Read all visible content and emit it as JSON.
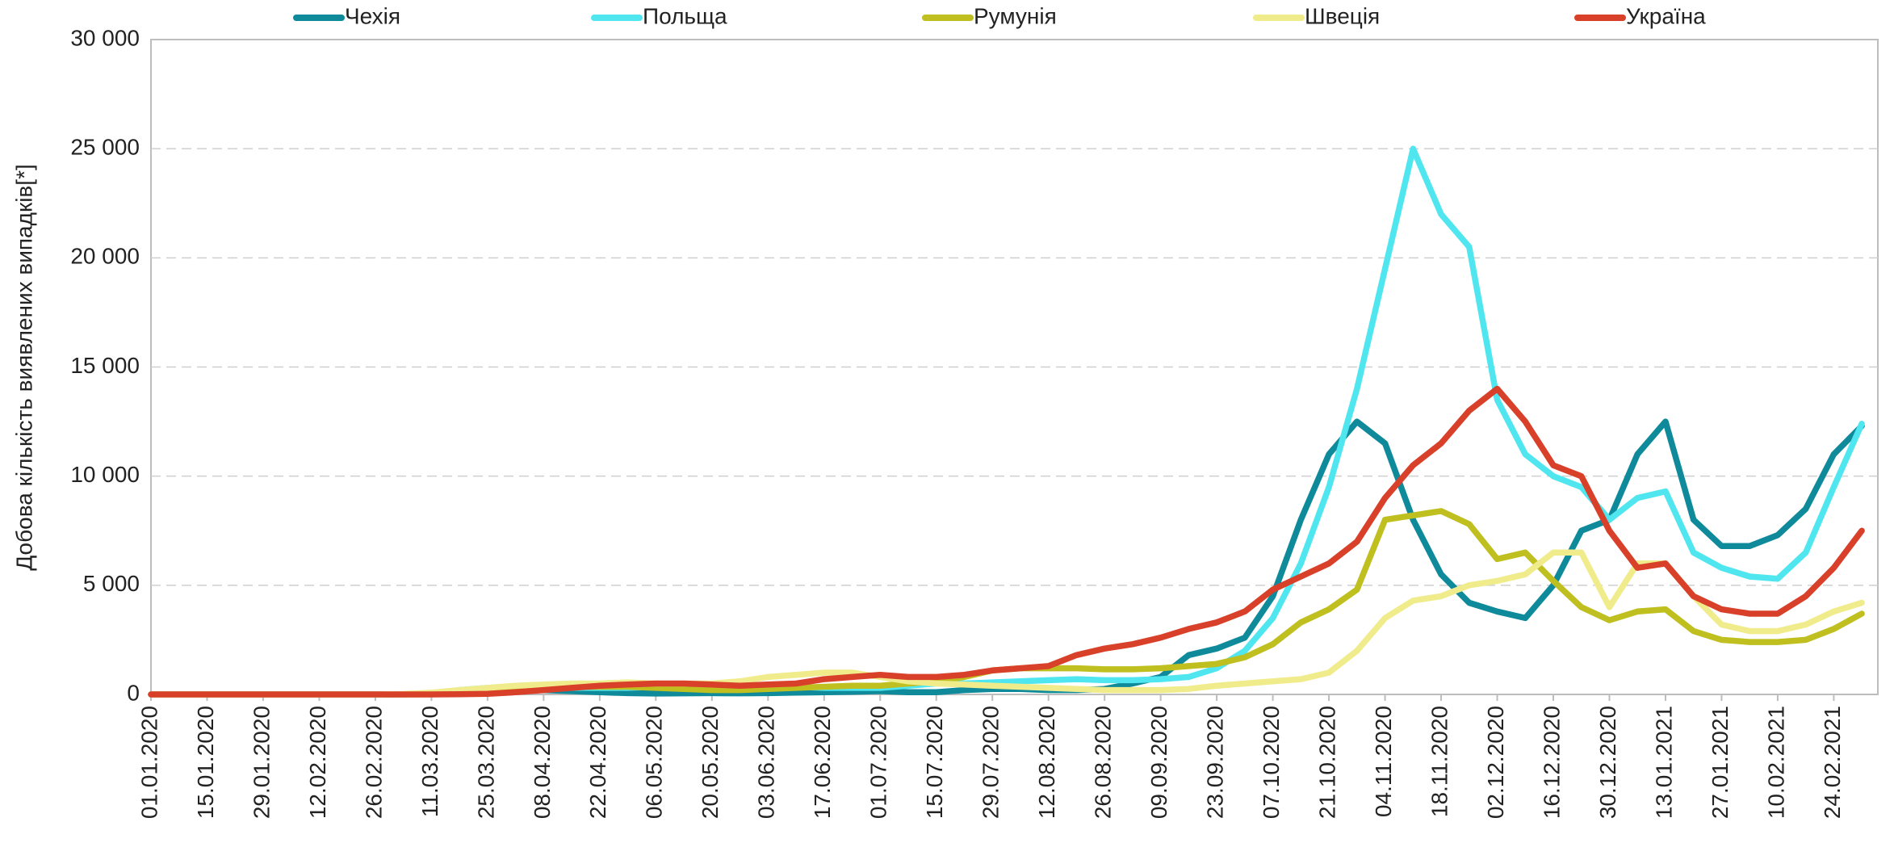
{
  "chart_data": {
    "type": "line",
    "y_label": "Добова кількість виявлених випадків[*]",
    "x": [
      "01.01.2020",
      "08.01.2020",
      "15.01.2020",
      "22.01.2020",
      "29.01.2020",
      "05.02.2020",
      "12.02.2020",
      "19.02.2020",
      "26.02.2020",
      "04.03.2020",
      "11.03.2020",
      "18.03.2020",
      "25.03.2020",
      "01.04.2020",
      "08.04.2020",
      "15.04.2020",
      "22.04.2020",
      "29.04.2020",
      "06.05.2020",
      "13.05.2020",
      "20.05.2020",
      "27.05.2020",
      "03.06.2020",
      "10.06.2020",
      "17.06.2020",
      "24.06.2020",
      "01.07.2020",
      "08.07.2020",
      "15.07.2020",
      "22.07.2020",
      "29.07.2020",
      "05.08.2020",
      "12.08.2020",
      "19.08.2020",
      "26.08.2020",
      "02.09.2020",
      "09.09.2020",
      "16.09.2020",
      "23.09.2020",
      "30.09.2020",
      "07.10.2020",
      "14.10.2020",
      "21.10.2020",
      "28.10.2020",
      "04.11.2020",
      "11.11.2020",
      "18.11.2020",
      "25.11.2020",
      "02.12.2020",
      "09.12.2020",
      "16.12.2020",
      "23.12.2020",
      "30.12.2020",
      "06.01.2021",
      "13.01.2021",
      "20.01.2021",
      "27.01.2021",
      "03.02.2021",
      "10.02.2021",
      "17.02.2021",
      "24.02.2021",
      "03.03.2021"
    ],
    "series": [
      {
        "name": "Чехія",
        "color": "#0e8a9a",
        "values": [
          0,
          0,
          0,
          0,
          0,
          0,
          0,
          0,
          0,
          5,
          30,
          100,
          150,
          250,
          200,
          150,
          100,
          60,
          40,
          50,
          60,
          50,
          60,
          80,
          100,
          120,
          150,
          100,
          100,
          200,
          250,
          250,
          200,
          200,
          250,
          500,
          800,
          1800,
          2100,
          2600,
          4500,
          8000,
          11000,
          12500,
          11500,
          8000,
          5500,
          4200,
          3800,
          3500,
          5000,
          7500,
          8000,
          11000,
          12500,
          8000,
          6800,
          6800,
          7300,
          8500,
          11000,
          12300
        ]
      },
      {
        "name": "Польща",
        "color": "#4fe6f0",
        "values": [
          0,
          0,
          0,
          0,
          0,
          0,
          0,
          0,
          0,
          10,
          40,
          200,
          300,
          350,
          350,
          300,
          300,
          300,
          350,
          350,
          350,
          300,
          350,
          350,
          300,
          300,
          300,
          400,
          500,
          500,
          550,
          600,
          650,
          700,
          650,
          650,
          700,
          800,
          1200,
          2000,
          3500,
          6000,
          9500,
          14000,
          19500,
          25000,
          22000,
          20500,
          13500,
          11000,
          10000,
          9500,
          8000,
          9000,
          9300,
          6500,
          5800,
          5400,
          5300,
          6500,
          9500,
          12400
        ]
      },
      {
        "name": "Румунія",
        "color": "#bfbf1f",
        "values": [
          0,
          0,
          0,
          0,
          0,
          0,
          0,
          0,
          0,
          0,
          5,
          30,
          100,
          200,
          300,
          350,
          350,
          350,
          300,
          250,
          200,
          200,
          250,
          300,
          350,
          400,
          400,
          500,
          600,
          800,
          1100,
          1200,
          1200,
          1200,
          1150,
          1150,
          1200,
          1300,
          1400,
          1700,
          2300,
          3300,
          3900,
          4800,
          8000,
          8200,
          8400,
          7800,
          6200,
          6500,
          5200,
          4000,
          3400,
          3800,
          3900,
          2900,
          2500,
          2400,
          2400,
          2500,
          3000,
          3700
        ]
      },
      {
        "name": "Швеція",
        "color": "#f0ec8c",
        "values": [
          0,
          0,
          0,
          0,
          0,
          0,
          0,
          0,
          0,
          20,
          80,
          200,
          300,
          400,
          450,
          500,
          500,
          550,
          500,
          500,
          500,
          600,
          800,
          900,
          1000,
          1000,
          800,
          600,
          500,
          450,
          400,
          350,
          300,
          250,
          200,
          200,
          200,
          250,
          400,
          500,
          600,
          700,
          1000,
          2000,
          3500,
          4300,
          4500,
          5000,
          5200,
          5500,
          6500,
          6500,
          4000,
          6000,
          6000,
          4500,
          3200,
          2900,
          2900,
          3200,
          3800,
          4200
        ]
      },
      {
        "name": "Україна",
        "color": "#d8402a",
        "values": [
          0,
          0,
          0,
          0,
          0,
          0,
          0,
          0,
          0,
          0,
          0,
          10,
          30,
          100,
          200,
          300,
          400,
          450,
          500,
          500,
          450,
          400,
          450,
          500,
          700,
          800,
          900,
          800,
          800,
          900,
          1100,
          1200,
          1300,
          1800,
          2100,
          2300,
          2600,
          3000,
          3300,
          3800,
          4800,
          5400,
          6000,
          7000,
          9000,
          10500,
          11500,
          13000,
          14000,
          12500,
          10500,
          10000,
          7500,
          5800,
          6000,
          4500,
          3900,
          3700,
          3700,
          4500,
          5800,
          7500
        ]
      }
    ],
    "xlim": [
      "01.01.2020",
      "07.03.2021"
    ],
    "xticks": [
      "01.01.2020",
      "15.01.2020",
      "29.01.2020",
      "12.02.2020",
      "26.02.2020",
      "11.03.2020",
      "25.03.2020",
      "08.04.2020",
      "22.04.2020",
      "06.05.2020",
      "20.05.2020",
      "03.06.2020",
      "17.06.2020",
      "01.07.2020",
      "15.07.2020",
      "29.07.2020",
      "12.08.2020",
      "26.08.2020",
      "09.09.2020",
      "23.09.2020",
      "07.10.2020",
      "21.10.2020",
      "04.11.2020",
      "18.11.2020",
      "02.12.2020",
      "16.12.2020",
      "30.12.2020",
      "13.01.2021",
      "27.01.2021",
      "10.02.2021",
      "24.02.2021"
    ],
    "ylim": [
      0,
      30000
    ],
    "yticks": [
      0,
      {
        "value": 5000,
        "label": "5 000"
      },
      {
        "value": 10000,
        "label": "10 000"
      },
      {
        "value": 15000,
        "label": "15 000"
      },
      {
        "value": 20000,
        "label": "20 000"
      },
      {
        "value": 25000,
        "label": "25 000"
      },
      {
        "value": 30000,
        "label": "30 000"
      }
    ],
    "grid": true,
    "legend": "top"
  }
}
